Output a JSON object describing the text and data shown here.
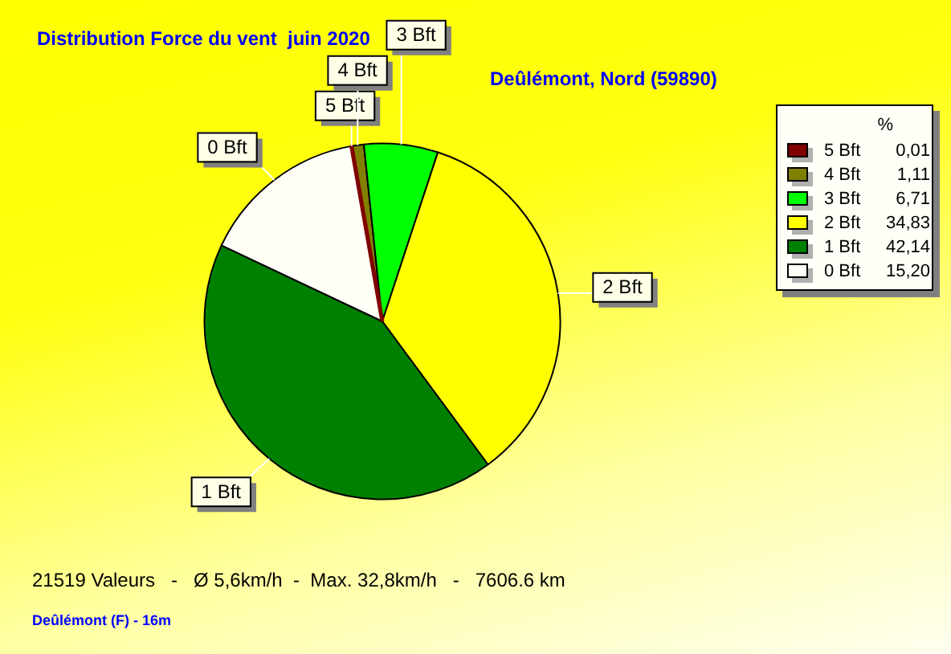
{
  "chart_data": {
    "type": "pie",
    "title": "Distribution Force du vent  juin 2020",
    "subtitle": "Deûlémont, Nord (59890)",
    "categories": [
      "5 Bft",
      "4 Bft",
      "3 Bft",
      "2 Bft",
      "1 Bft",
      "0 Bft"
    ],
    "values": [
      0.01,
      1.11,
      6.71,
      34.83,
      42.14,
      15.2
    ],
    "colors": [
      "#800000",
      "#808000",
      "#00ff00",
      "#ffff00",
      "#008000",
      "#fffff8"
    ],
    "value_labels": [
      "0,01",
      "1,11",
      "6,71",
      "34,83",
      "42,14",
      "15,20"
    ],
    "legend": "top right",
    "legend_title": "%",
    "annotations": [
      "21519 Valeurs   -   Ø 5,6km/h  -  Max. 32,8km/h   -   7606.6 km",
      "Deûlémont (F) - 16m"
    ]
  }
}
